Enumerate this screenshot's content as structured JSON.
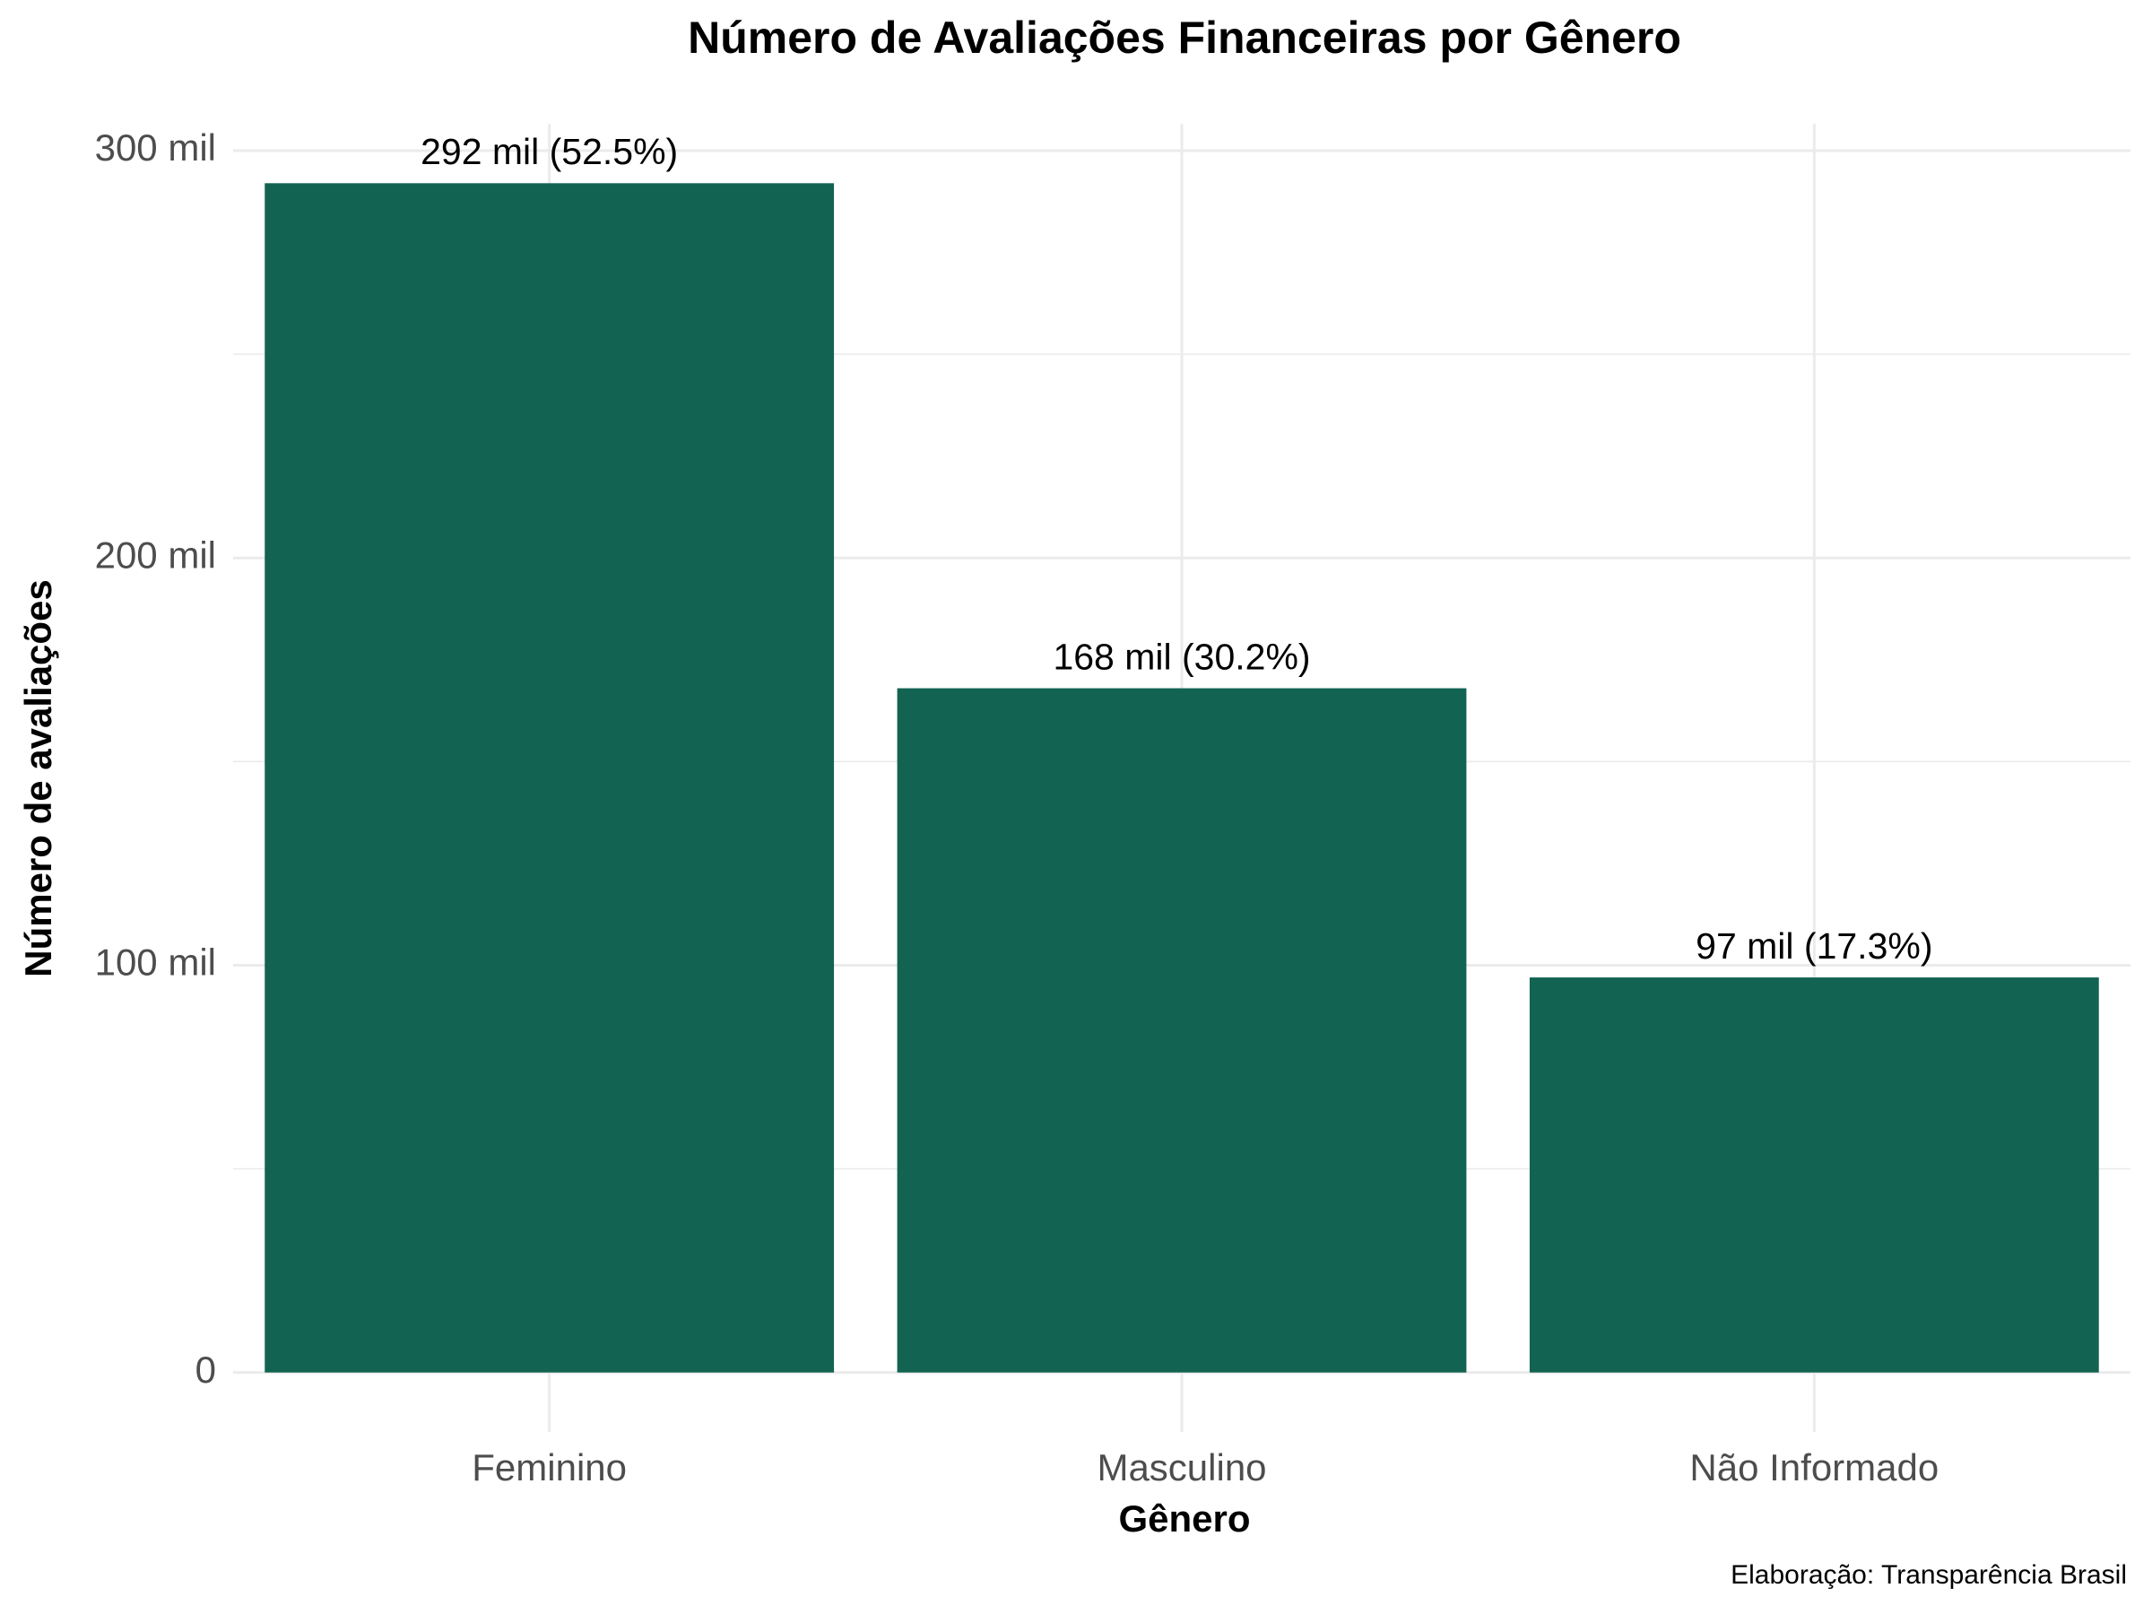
{
  "chart_data": {
    "type": "bar",
    "title": "Número de Avaliações Financeiras por Gênero",
    "x_label": "Gênero",
    "y_label": "Número de avaliações",
    "caption": "Elaboração: Transparência Brasil",
    "categories": [
      "Feminino",
      "Masculino",
      "Não Informado"
    ],
    "values": [
      292000,
      168000,
      97000
    ],
    "value_labels": [
      "292 mil (52.5%)",
      "168 mil (30.2%)",
      "97 mil (17.3%)"
    ],
    "color": "#136352",
    "ylim": [
      -14600,
      306600
    ],
    "yticks": [
      0,
      {
        "value": 100000,
        "label": "100 mil"
      },
      {
        "value": 200000,
        "label": "200 mil"
      },
      {
        "value": 300000,
        "label": "300 mil"
      }
    ],
    "minor_yticks": [
      50000,
      150000,
      250000
    ],
    "grid": true
  }
}
